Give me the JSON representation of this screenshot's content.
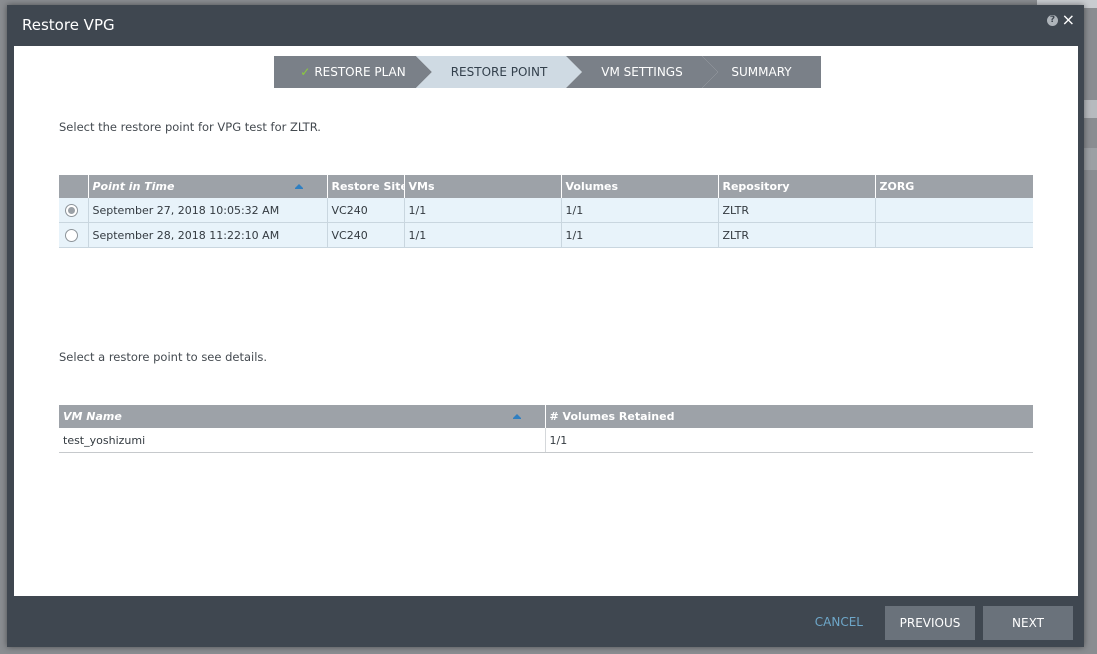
{
  "dialog": {
    "title": "Restore VPG",
    "help_icon": "question-icon",
    "close_icon": "×"
  },
  "steps": [
    {
      "label": "RESTORE PLAN",
      "state": "completed",
      "icon": "checkmark-icon",
      "check": "✓"
    },
    {
      "label": "RESTORE POINT",
      "state": "active"
    },
    {
      "label": "VM SETTINGS",
      "state": "pending"
    },
    {
      "label": "SUMMARY",
      "state": "pending"
    }
  ],
  "restore_points": {
    "prompt": "Select the restore point for VPG test for ZLTR.",
    "columns": [
      "Point in Time",
      "Restore Site",
      "VMs",
      "Volumes",
      "Repository",
      "ZORG"
    ],
    "sorted_column": "Point in Time",
    "rows": [
      {
        "selected": true,
        "point_in_time": "September 27, 2018 10:05:32 AM",
        "restore_site": "VC240",
        "vms": "1/1",
        "volumes": "1/1",
        "repository": "ZLTR",
        "zorg": ""
      },
      {
        "selected": false,
        "point_in_time": "September 28, 2018 11:22:10 AM",
        "restore_site": "VC240",
        "vms": "1/1",
        "volumes": "1/1",
        "repository": "ZLTR",
        "zorg": ""
      }
    ]
  },
  "details": {
    "prompt": "Select a restore point to see details.",
    "columns": [
      "VM Name",
      "# Volumes Retained"
    ],
    "sorted_column": "VM Name",
    "rows": [
      {
        "vm_name": "test_yoshizumi",
        "volumes_retained": "1/1"
      }
    ]
  },
  "footer": {
    "cancel_label": "CANCEL",
    "previous_label": "PREVIOUS",
    "next_label": "NEXT"
  },
  "colors": {
    "dialog_chrome": "#3f4750",
    "active_step": "#cfdae3",
    "inactive_step": "#7a8088",
    "check": "#8ccc3c",
    "header": "#9da2a8",
    "row_highlight": "#e8f3fa",
    "cancel_link": "#6ea7c9"
  }
}
